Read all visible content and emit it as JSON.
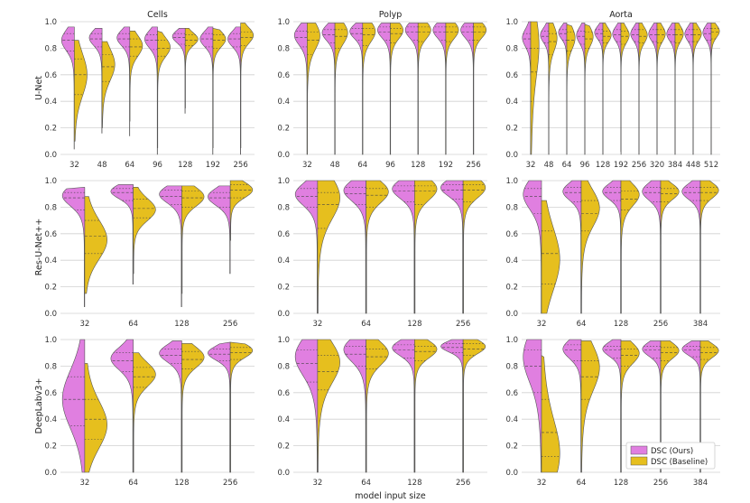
{
  "xlabel": "model input size",
  "column_titles": [
    "Cells",
    "Polyp",
    "Aorta"
  ],
  "row_labels": [
    "U-Net",
    "Res-U-Net++",
    "DeepLabv3+"
  ],
  "y_ticks": [
    "0.0",
    "0.2",
    "0.4",
    "0.6",
    "0.8",
    "1.0"
  ],
  "legend": {
    "ours": "DSC (Ours)",
    "baseline": "DSC (Baseline)"
  },
  "colors": {
    "ours": "#e07fe0",
    "baseline": "#e6bf1e",
    "grid": "#d0d0d0"
  },
  "chart_data": [
    {
      "type": "violin",
      "row": "U-Net",
      "col": "Cells",
      "title": "Cells",
      "ylabel": "U-Net",
      "xlabel": "",
      "ylim": [
        0,
        1
      ],
      "categories": [
        "32",
        "48",
        "64",
        "96",
        "128",
        "192",
        "256"
      ],
      "series": [
        {
          "name": "DSC (Ours)",
          "min": [
            0.04,
            0.16,
            0.14,
            0.0,
            0.31,
            0.0,
            0.0
          ],
          "q1": [
            0.78,
            0.81,
            0.81,
            0.79,
            0.83,
            0.81,
            0.81
          ],
          "median": [
            0.86,
            0.87,
            0.87,
            0.86,
            0.88,
            0.87,
            0.87
          ],
          "q3": [
            0.91,
            0.91,
            0.91,
            0.9,
            0.91,
            0.91,
            0.91
          ],
          "max": [
            0.96,
            0.95,
            0.96,
            0.96,
            0.95,
            0.96,
            0.96
          ],
          "mode": [
            0.86,
            0.88,
            0.88,
            0.87,
            0.89,
            0.87,
            0.87
          ]
        },
        {
          "name": "DSC (Baseline)",
          "min": [
            0.1,
            0.2,
            0.25,
            0.05,
            0.35,
            0.05,
            0.05
          ],
          "q1": [
            0.45,
            0.55,
            0.74,
            0.74,
            0.82,
            0.8,
            0.82
          ],
          "median": [
            0.6,
            0.66,
            0.81,
            0.8,
            0.86,
            0.86,
            0.88
          ],
          "q3": [
            0.72,
            0.75,
            0.87,
            0.86,
            0.9,
            0.9,
            0.92
          ],
          "max": [
            0.86,
            0.85,
            0.93,
            0.93,
            0.95,
            0.95,
            0.99
          ],
          "mode": [
            0.6,
            0.68,
            0.82,
            0.81,
            0.87,
            0.87,
            0.9
          ]
        }
      ]
    },
    {
      "type": "violin",
      "row": "U-Net",
      "col": "Polyp",
      "title": "Polyp",
      "ylabel": "",
      "xlabel": "",
      "ylim": [
        0,
        1
      ],
      "categories": [
        "32",
        "48",
        "64",
        "96",
        "128",
        "192",
        "256"
      ],
      "series": [
        {
          "name": "DSC (Ours)",
          "min": [
            0.0,
            0.0,
            0.0,
            0.0,
            0.0,
            0.0,
            0.0
          ],
          "q1": [
            0.81,
            0.84,
            0.86,
            0.86,
            0.86,
            0.86,
            0.86
          ],
          "median": [
            0.88,
            0.9,
            0.91,
            0.92,
            0.92,
            0.92,
            0.92
          ],
          "q3": [
            0.93,
            0.94,
            0.95,
            0.96,
            0.96,
            0.96,
            0.96
          ],
          "max": [
            0.99,
            0.99,
            0.99,
            0.99,
            0.99,
            0.99,
            0.99
          ],
          "mode": [
            0.9,
            0.92,
            0.93,
            0.94,
            0.94,
            0.94,
            0.94
          ]
        },
        {
          "name": "DSC (Baseline)",
          "min": [
            0.0,
            0.0,
            0.0,
            0.0,
            0.0,
            0.0,
            0.0
          ],
          "q1": [
            0.75,
            0.8,
            0.82,
            0.84,
            0.85,
            0.85,
            0.86
          ],
          "median": [
            0.86,
            0.89,
            0.9,
            0.91,
            0.92,
            0.92,
            0.92
          ],
          "q3": [
            0.92,
            0.94,
            0.95,
            0.95,
            0.96,
            0.96,
            0.96
          ],
          "max": [
            0.99,
            0.99,
            0.99,
            0.99,
            0.99,
            0.99,
            0.99
          ],
          "mode": [
            0.9,
            0.92,
            0.93,
            0.94,
            0.94,
            0.94,
            0.94
          ]
        }
      ]
    },
    {
      "type": "violin",
      "row": "U-Net",
      "col": "Aorta",
      "title": "Aorta",
      "ylabel": "",
      "xlabel": "",
      "ylim": [
        0,
        1
      ],
      "categories": [
        "32",
        "48",
        "64",
        "96",
        "128",
        "192",
        "256",
        "320",
        "384",
        "448",
        "512"
      ],
      "series": [
        {
          "name": "DSC (Ours)",
          "min": [
            0.0,
            0.0,
            0.0,
            0.0,
            0.0,
            0.02,
            0.0,
            0.0,
            0.0,
            0.0,
            0.0
          ],
          "q1": [
            0.8,
            0.84,
            0.86,
            0.83,
            0.86,
            0.85,
            0.85,
            0.85,
            0.85,
            0.85,
            0.86
          ],
          "median": [
            0.87,
            0.89,
            0.91,
            0.89,
            0.91,
            0.9,
            0.9,
            0.9,
            0.9,
            0.9,
            0.91
          ],
          "q3": [
            0.91,
            0.93,
            0.94,
            0.93,
            0.94,
            0.94,
            0.94,
            0.94,
            0.94,
            0.94,
            0.95
          ],
          "max": [
            1.0,
            0.99,
            0.99,
            0.99,
            0.99,
            0.99,
            0.99,
            0.99,
            0.99,
            0.99,
            0.99
          ],
          "mode": [
            0.88,
            0.9,
            0.92,
            0.9,
            0.92,
            0.91,
            0.91,
            0.91,
            0.91,
            0.91,
            0.92
          ]
        },
        {
          "name": "DSC (Baseline)",
          "min": [
            0.0,
            0.0,
            0.0,
            0.0,
            0.0,
            0.0,
            0.0,
            0.0,
            0.0,
            0.0,
            0.0
          ],
          "q1": [
            0.4,
            0.75,
            0.78,
            0.8,
            0.84,
            0.83,
            0.84,
            0.84,
            0.84,
            0.85,
            0.87
          ],
          "median": [
            0.62,
            0.85,
            0.86,
            0.87,
            0.89,
            0.89,
            0.89,
            0.9,
            0.9,
            0.9,
            0.92
          ],
          "q3": [
            0.8,
            0.91,
            0.92,
            0.92,
            0.93,
            0.93,
            0.94,
            0.94,
            0.94,
            0.94,
            0.95
          ],
          "max": [
            1.0,
            0.99,
            0.98,
            0.98,
            0.99,
            0.99,
            0.99,
            0.99,
            0.99,
            0.99,
            0.99
          ],
          "mode": [
            0.85,
            0.88,
            0.88,
            0.89,
            0.9,
            0.9,
            0.9,
            0.91,
            0.91,
            0.91,
            0.93
          ]
        }
      ]
    },
    {
      "type": "violin",
      "row": "Res-U-Net++",
      "col": "Cells",
      "title": "",
      "ylabel": "Res-U-Net++",
      "xlabel": "",
      "ylim": [
        0,
        1
      ],
      "categories": [
        "32",
        "64",
        "128",
        "256"
      ],
      "series": [
        {
          "name": "DSC (Ours)",
          "min": [
            0.05,
            0.22,
            0.05,
            0.3
          ],
          "q1": [
            0.78,
            0.85,
            0.82,
            0.8
          ],
          "median": [
            0.87,
            0.91,
            0.88,
            0.87
          ],
          "q3": [
            0.91,
            0.94,
            0.93,
            0.91
          ],
          "max": [
            0.95,
            0.97,
            0.96,
            0.96
          ],
          "mode": [
            0.89,
            0.92,
            0.9,
            0.88
          ]
        },
        {
          "name": "DSC (Baseline)",
          "min": [
            0.15,
            0.3,
            0.15,
            0.55
          ],
          "q1": [
            0.45,
            0.72,
            0.8,
            0.87
          ],
          "median": [
            0.58,
            0.79,
            0.87,
            0.93
          ],
          "q3": [
            0.7,
            0.86,
            0.92,
            0.97
          ],
          "max": [
            0.88,
            0.95,
            0.96,
            1.0
          ],
          "mode": [
            0.55,
            0.78,
            0.88,
            0.93
          ]
        }
      ]
    },
    {
      "type": "violin",
      "row": "Res-U-Net++",
      "col": "Polyp",
      "title": "",
      "ylabel": "",
      "xlabel": "",
      "ylim": [
        0,
        1
      ],
      "categories": [
        "32",
        "64",
        "128",
        "256"
      ],
      "series": [
        {
          "name": "DSC (Ours)",
          "min": [
            0.0,
            0.0,
            0.0,
            0.0
          ],
          "q1": [
            0.8,
            0.82,
            0.84,
            0.86
          ],
          "median": [
            0.88,
            0.9,
            0.92,
            0.93
          ],
          "q3": [
            0.94,
            0.95,
            0.96,
            0.97
          ],
          "max": [
            1.0,
            1.0,
            1.0,
            1.0
          ],
          "mode": [
            0.9,
            0.93,
            0.94,
            0.95
          ]
        },
        {
          "name": "DSC (Baseline)",
          "min": [
            0.0,
            0.0,
            0.0,
            0.0
          ],
          "q1": [
            0.64,
            0.8,
            0.82,
            0.84
          ],
          "median": [
            0.82,
            0.89,
            0.92,
            0.93
          ],
          "q3": [
            0.91,
            0.94,
            0.96,
            0.97
          ],
          "max": [
            1.0,
            1.0,
            1.0,
            1.0
          ],
          "mode": [
            0.88,
            0.92,
            0.94,
            0.95
          ]
        }
      ]
    },
    {
      "type": "violin",
      "row": "Res-U-Net++",
      "col": "Aorta",
      "title": "",
      "ylabel": "",
      "xlabel": "",
      "ylim": [
        0,
        1
      ],
      "categories": [
        "32",
        "64",
        "128",
        "256",
        "384"
      ],
      "series": [
        {
          "name": "DSC (Ours)",
          "min": [
            0.0,
            0.0,
            0.0,
            0.0,
            0.0
          ],
          "q1": [
            0.75,
            0.84,
            0.85,
            0.84,
            0.85
          ],
          "median": [
            0.88,
            0.91,
            0.91,
            0.91,
            0.91
          ],
          "q3": [
            0.94,
            0.95,
            0.95,
            0.95,
            0.95
          ],
          "max": [
            1.0,
            1.0,
            1.0,
            1.0,
            1.0
          ],
          "mode": [
            0.9,
            0.92,
            0.92,
            0.92,
            0.92
          ]
        },
        {
          "name": "DSC (Baseline)",
          "min": [
            0.0,
            0.0,
            0.0,
            0.0,
            0.0
          ],
          "q1": [
            0.22,
            0.62,
            0.78,
            0.84,
            0.85
          ],
          "median": [
            0.45,
            0.75,
            0.86,
            0.9,
            0.91
          ],
          "q3": [
            0.62,
            0.85,
            0.92,
            0.94,
            0.95
          ],
          "max": [
            0.85,
            1.0,
            1.0,
            1.0,
            1.0
          ],
          "mode": [
            0.4,
            0.8,
            0.9,
            0.92,
            0.93
          ]
        }
      ]
    },
    {
      "type": "violin",
      "row": "DeepLabv3+",
      "col": "Cells",
      "title": "",
      "ylabel": "DeepLabv3+",
      "xlabel": "model input size",
      "ylim": [
        0,
        1
      ],
      "categories": [
        "32",
        "64",
        "128",
        "256"
      ],
      "series": [
        {
          "name": "DSC (Ours)",
          "min": [
            0.0,
            0.0,
            0.0,
            0.0
          ],
          "q1": [
            0.35,
            0.76,
            0.82,
            0.84
          ],
          "median": [
            0.55,
            0.84,
            0.88,
            0.89
          ],
          "q3": [
            0.72,
            0.9,
            0.93,
            0.93
          ],
          "max": [
            1.0,
            1.0,
            0.99,
            0.98
          ],
          "mode": [
            0.55,
            0.86,
            0.9,
            0.9
          ]
        },
        {
          "name": "DSC (Baseline)",
          "min": [
            0.0,
            0.0,
            0.0,
            0.0
          ],
          "q1": [
            0.25,
            0.64,
            0.78,
            0.85
          ],
          "median": [
            0.4,
            0.72,
            0.85,
            0.9
          ],
          "q3": [
            0.55,
            0.79,
            0.91,
            0.94
          ],
          "max": [
            0.82,
            0.9,
            0.97,
            0.98
          ],
          "mode": [
            0.35,
            0.74,
            0.87,
            0.92
          ]
        }
      ]
    },
    {
      "type": "violin",
      "row": "DeepLabv3+",
      "col": "Polyp",
      "title": "",
      "ylabel": "",
      "xlabel": "model input size",
      "ylim": [
        0,
        1
      ],
      "categories": [
        "32",
        "64",
        "128",
        "256"
      ],
      "series": [
        {
          "name": "DSC (Ours)",
          "min": [
            0.0,
            0.0,
            0.0,
            0.0
          ],
          "q1": [
            0.68,
            0.8,
            0.86,
            0.9
          ],
          "median": [
            0.82,
            0.89,
            0.92,
            0.94
          ],
          "q3": [
            0.92,
            0.95,
            0.96,
            0.97
          ],
          "max": [
            1.0,
            1.0,
            1.0,
            1.0
          ],
          "mode": [
            0.88,
            0.93,
            0.94,
            0.95
          ]
        },
        {
          "name": "DSC (Baseline)",
          "min": [
            0.0,
            0.0,
            0.0,
            0.0
          ],
          "q1": [
            0.62,
            0.78,
            0.84,
            0.88
          ],
          "median": [
            0.76,
            0.87,
            0.91,
            0.93
          ],
          "q3": [
            0.88,
            0.93,
            0.95,
            0.97
          ],
          "max": [
            1.0,
            1.0,
            1.0,
            1.0
          ],
          "mode": [
            0.84,
            0.9,
            0.93,
            0.95
          ]
        }
      ]
    },
    {
      "type": "violin",
      "row": "DeepLabv3+",
      "col": "Aorta",
      "title": "",
      "ylabel": "",
      "xlabel": "model input size",
      "ylim": [
        0,
        1
      ],
      "categories": [
        "32",
        "64",
        "128",
        "256",
        "384"
      ],
      "series": [
        {
          "name": "DSC (Ours)",
          "min": [
            0.0,
            0.0,
            0.0,
            0.0,
            0.0
          ],
          "q1": [
            0.6,
            0.84,
            0.86,
            0.86,
            0.87
          ],
          "median": [
            0.8,
            0.92,
            0.92,
            0.92,
            0.92
          ],
          "q3": [
            0.92,
            0.96,
            0.95,
            0.95,
            0.95
          ],
          "max": [
            1.0,
            1.0,
            1.0,
            0.99,
            0.99
          ],
          "mode": [
            0.88,
            0.93,
            0.93,
            0.93,
            0.93
          ]
        },
        {
          "name": "DSC (Baseline)",
          "min": [
            0.0,
            0.0,
            0.0,
            0.0,
            0.0
          ],
          "q1": [
            0.12,
            0.55,
            0.8,
            0.84,
            0.85
          ],
          "median": [
            0.3,
            0.72,
            0.88,
            0.9,
            0.9
          ],
          "q3": [
            0.55,
            0.84,
            0.93,
            0.94,
            0.94
          ],
          "max": [
            0.88,
            0.99,
            0.99,
            0.99,
            0.99
          ],
          "mode": [
            0.12,
            0.8,
            0.9,
            0.92,
            0.92
          ]
        }
      ]
    }
  ]
}
